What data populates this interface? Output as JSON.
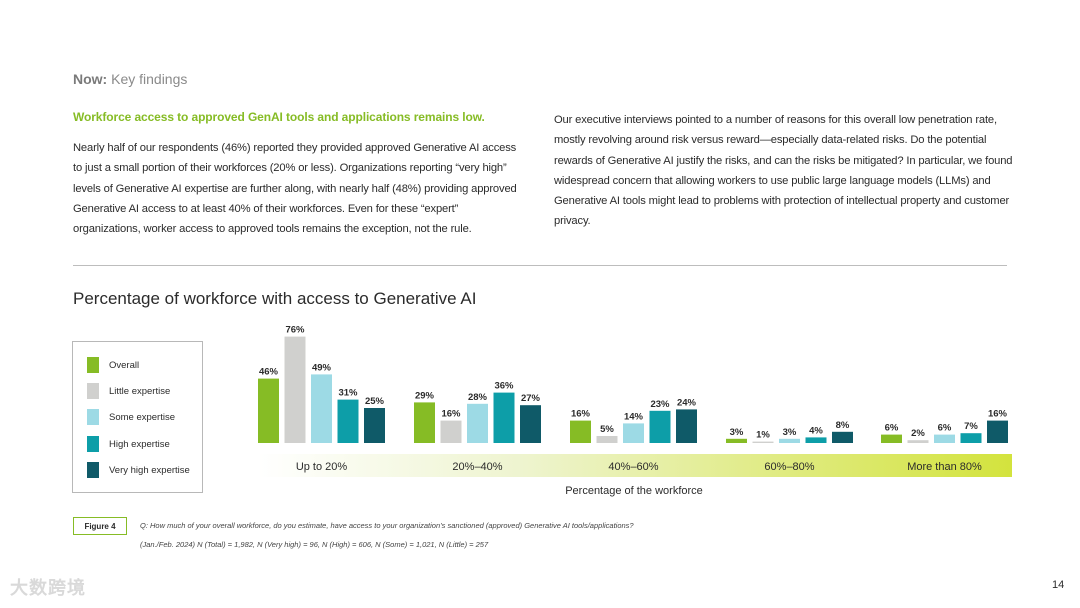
{
  "header": {
    "prefix": "Now:",
    "suffix": " Key findings"
  },
  "left_column": {
    "heading": "Workforce access to approved GenAI tools and applications remains low.",
    "paragraph": "Nearly half of our respondents (46%) reported they provided approved Generative AI access to just a small portion of their workforces (20% or less). Organizations reporting “very high” levels of Generative AI expertise are further along, with nearly half (48%) providing approved Generative AI access to at least 40% of their workforces. Even for these “expert” organizations, worker access to approved tools remains the exception, not the rule."
  },
  "right_column": {
    "paragraph": "Our executive interviews pointed to a number of reasons for this overall low penetration rate, mostly revolving around risk versus reward—especially data-related risks. Do the potential rewards of Generative AI justify the risks, and can the risks be mitigated? In particular, we found widespread concern that allowing workers to use public large language models (LLMs) and Generative AI tools might lead to problems with protection of intellectual property and customer privacy."
  },
  "chart_data": {
    "type": "bar",
    "title": "Percentage of workforce with access to Generative AI",
    "xlabel": "Percentage of the workforce",
    "ylabel": "",
    "ylim": [
      0,
      80
    ],
    "legend_position": "left",
    "categories": [
      "Up to 20%",
      "20%–40%",
      "40%–60%",
      "60%–80%",
      "More than 80%"
    ],
    "series": [
      {
        "name": "Overall",
        "color": "#86bc25",
        "values": [
          46,
          29,
          16,
          3,
          6
        ]
      },
      {
        "name": "Little expertise",
        "color": "#d0d0ce",
        "values": [
          76,
          16,
          5,
          1,
          2
        ]
      },
      {
        "name": "Some expertise",
        "color": "#9ddae5",
        "values": [
          49,
          28,
          14,
          3,
          6
        ]
      },
      {
        "name": "High expertise",
        "color": "#0d9ea8",
        "values": [
          31,
          36,
          23,
          4,
          7
        ]
      },
      {
        "name": "Very high expertise",
        "color": "#0f5a68",
        "values": [
          25,
          27,
          24,
          8,
          16
        ]
      }
    ]
  },
  "figure": {
    "label": "Figure 4",
    "question": "Q: How much of your overall workforce, do you estimate, have access to your organization’s sanctioned (approved) Generative AI tools/applications?",
    "sample": "(Jan./Feb. 2024) N (Total) = 1,982, N (Very high) = 96, N (High) = 606, N (Some) = 1,021, N (Little) = 257"
  },
  "page_number": "14",
  "watermark": "大数跨境"
}
